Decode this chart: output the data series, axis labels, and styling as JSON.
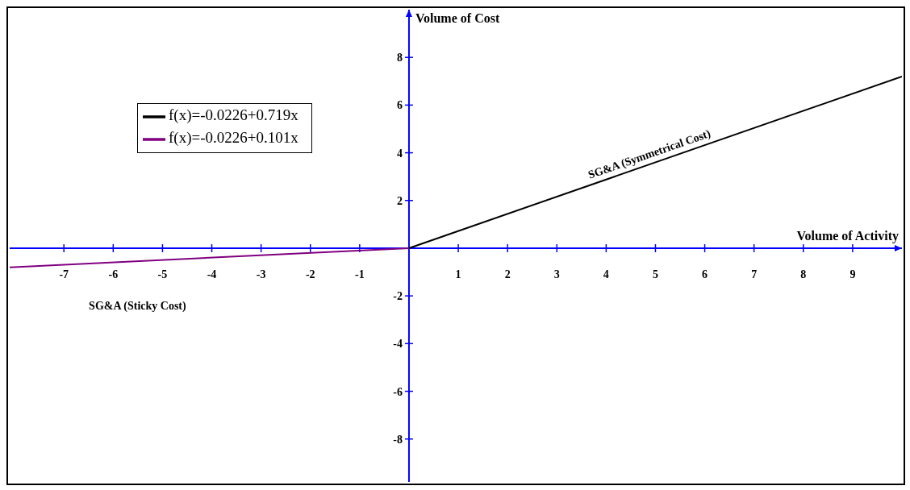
{
  "chart_data": {
    "type": "line",
    "xlabel": "Volume of Activity",
    "ylabel": "Volume of Cost",
    "xlim": [
      -8.1,
      10
    ],
    "ylim": [
      -9.8,
      10
    ],
    "xticks": [
      -7,
      -6,
      -5,
      -4,
      -3,
      -2,
      -1,
      1,
      2,
      3,
      4,
      5,
      6,
      7,
      8,
      9
    ],
    "yticks": [
      -8,
      -6,
      -4,
      -2,
      2,
      4,
      6,
      8
    ],
    "series": [
      {
        "name": "f(x)=-0.0226+0.719x",
        "color": "#000000",
        "x": [
          0,
          10
        ],
        "values": [
          0,
          7.2
        ]
      },
      {
        "name": "f(x)=-0.0226+0.101x",
        "color": "#800080",
        "x": [
          -8.1,
          0
        ],
        "values": [
          -0.8,
          0
        ]
      }
    ],
    "annotations": [
      "SG&A (Symmetrical Cost)",
      "SG&A (Sticky Cost)"
    ],
    "legend": "top left",
    "marker": "none",
    "line_style": "solid"
  }
}
